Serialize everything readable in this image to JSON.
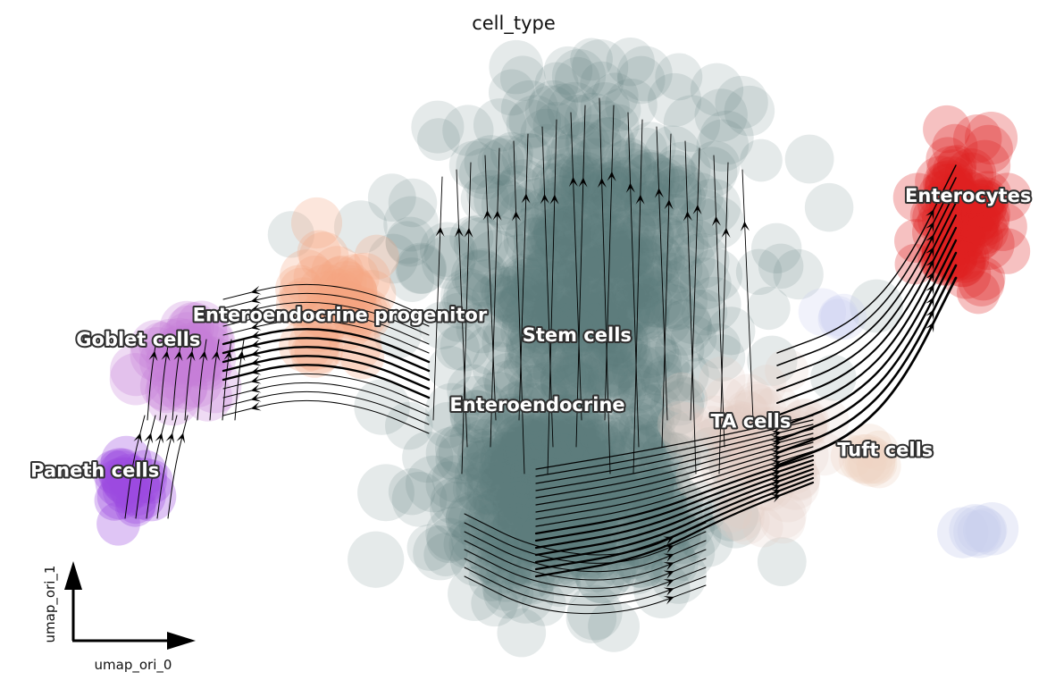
{
  "title": "cell_type",
  "chart_data": {
    "type": "scatter",
    "subtype": "umap embedding with velocity streamlines",
    "title": "cell_type",
    "xlabel": "umap_ori_0",
    "ylabel": "umap_ori_1",
    "grid": false,
    "legend": "on data",
    "xlim": [
      -12,
      14
    ],
    "ylim": [
      -8,
      9
    ],
    "series": [
      {
        "name": "Stem cells",
        "color": "#5b7b7e"
      },
      {
        "name": "Enteroendocrine",
        "color": "#5b7b7e"
      },
      {
        "name": "Enteroendocrine progenitor",
        "color": "#f4a582"
      },
      {
        "name": "Goblet cells",
        "color": "#c77fd9"
      },
      {
        "name": "Paneth cells",
        "color": "#9b4ae0"
      },
      {
        "name": "Enterocytes",
        "color": "#e02020"
      },
      {
        "name": "TA cells",
        "color": "#e3cfc4"
      },
      {
        "name": "Tuft cells",
        "color": "#f0d3c4"
      },
      {
        "name": "",
        "color": "#c9cdee"
      }
    ],
    "cluster_labels": [
      {
        "text": "Enterocytes",
        "x": 12.5,
        "y": 4.2
      },
      {
        "text": "Enteroendocrine progenitor",
        "x": -3.4,
        "y": 1.3
      },
      {
        "text": "Goblet cells",
        "x": -8.5,
        "y": 0.7
      },
      {
        "text": "Stem cells",
        "x": 2.6,
        "y": 0.8
      },
      {
        "text": "Enteroendocrine",
        "x": 1.6,
        "y": -0.9
      },
      {
        "text": "TA cells",
        "x": 7.0,
        "y": -1.3
      },
      {
        "text": "Tuft cells",
        "x": 10.4,
        "y": -2.0
      },
      {
        "text": "Paneth cells",
        "x": -9.6,
        "y": -2.5
      }
    ]
  }
}
